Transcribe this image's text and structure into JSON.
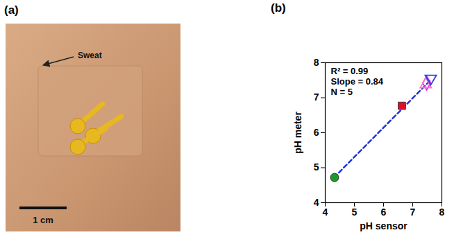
{
  "figure": {
    "panel_a": {
      "label": "(a)",
      "annotation": "Sweat",
      "scale_bar": "1 cm"
    },
    "panel_b_label": "(b)"
  },
  "chart_data": {
    "type": "scatter",
    "x_label": "pH sensor",
    "y_label": "pH meter",
    "annotations": [
      "R² = 0.99",
      "Slope = 0.84",
      "N = 5"
    ],
    "xlim": [
      4,
      8
    ],
    "xticks": [
      4,
      5,
      6,
      7,
      8
    ],
    "ylim": [
      4,
      8
    ],
    "yticks": [
      4,
      5,
      6,
      7,
      8
    ],
    "series": [
      {
        "type": "line",
        "color": "#2233dd",
        "line_style": "dashed",
        "x": [
          4.3,
          7.6
        ],
        "values": [
          4.72,
          7.49
        ]
      },
      {
        "type": "scatter",
        "color": "#1a9a2a",
        "marker": "circle",
        "x": [
          4.32
        ],
        "values": [
          4.72
        ]
      },
      {
        "type": "scatter",
        "color": "#e0102a",
        "marker": "square",
        "x": [
          6.63
        ],
        "values": [
          6.77
        ]
      },
      {
        "type": "scatter",
        "color": "#e020e0",
        "marker": "open-diamond",
        "x": [
          7.48
        ],
        "values": [
          7.42
        ]
      },
      {
        "type": "scatter",
        "color": "#f080c0",
        "marker": "open-triangle",
        "x": [
          7.45
        ],
        "values": [
          7.38
        ]
      },
      {
        "type": "scatter",
        "color": "#3040e0",
        "marker": "open-triangle-down",
        "x": [
          7.62
        ],
        "values": [
          7.55
        ]
      }
    ]
  }
}
